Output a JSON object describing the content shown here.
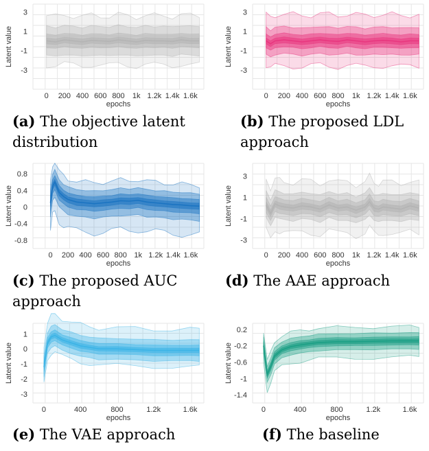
{
  "panels": [
    {
      "id": "a",
      "caption": {
        "tag": "(a)",
        "text": "The objective latent distribution"
      },
      "chart_data": {
        "type": "area",
        "xlabel": "epochs",
        "ylabel": "Latent value",
        "xticks": [
          "0",
          "200",
          "400",
          "600",
          "800",
          "1k",
          "1.2k",
          "1.4k",
          "1.6k"
        ],
        "xtick_values": [
          0,
          200,
          400,
          600,
          800,
          1000,
          1200,
          1400,
          1600
        ],
        "yticks": [
          "3",
          "1",
          "-1",
          "-3"
        ],
        "ytick_values": [
          3,
          1,
          -1,
          -3
        ],
        "xlim": [
          -150,
          1750
        ],
        "ylim": [
          -5,
          3.8
        ],
        "color": "#b3b3b3",
        "x": [
          0,
          100,
          200,
          300,
          400,
          500,
          600,
          700,
          800,
          900,
          1000,
          1100,
          1200,
          1300,
          1400,
          1500,
          1600,
          1700
        ],
        "median": [
          0,
          -0.1,
          0.1,
          0,
          -0.1,
          0.05,
          0,
          -0.05,
          0.1,
          0,
          -0.1,
          0.05,
          0,
          0,
          -0.05,
          0.1,
          0,
          0
        ],
        "bands": [
          [
            0.3,
            0.3
          ],
          [
            0.7,
            0.7
          ],
          [
            1.5,
            1.5
          ],
          [
            2.5,
            2.6
          ]
        ]
      }
    },
    {
      "id": "b",
      "caption": {
        "tag": "(b)",
        "text": "The proposed LDL approach"
      },
      "chart_data": {
        "type": "area",
        "xlabel": "epochs",
        "ylabel": "Latent value",
        "xticks": [
          "0",
          "200",
          "400",
          "600",
          "800",
          "1k",
          "1.2k",
          "1.4k",
          "1.6k"
        ],
        "xtick_values": [
          0,
          200,
          400,
          600,
          800,
          1000,
          1200,
          1400,
          1600
        ],
        "yticks": [
          "3",
          "1",
          "-1",
          "-3"
        ],
        "ytick_values": [
          3,
          1,
          -1,
          -3
        ],
        "xlim": [
          -150,
          1750
        ],
        "ylim": [
          -5,
          3.8
        ],
        "color": "#e8367e",
        "x": [
          0,
          50,
          100,
          200,
          300,
          400,
          500,
          600,
          700,
          800,
          900,
          1000,
          1100,
          1200,
          1300,
          1400,
          1500,
          1600,
          1700
        ],
        "median": [
          0,
          -0.3,
          0,
          0.1,
          0,
          -0.1,
          0,
          0.1,
          0,
          -0.05,
          0.1,
          0,
          -0.1,
          0,
          0.05,
          0,
          -0.1,
          0,
          0
        ],
        "bands": [
          [
            0.3,
            0.3
          ],
          [
            0.7,
            0.7
          ],
          [
            1.4,
            1.4
          ],
          [
            2.6,
            2.7
          ]
        ]
      }
    },
    {
      "id": "c",
      "caption": {
        "tag": "(c)",
        "text": "The proposed AUC approach"
      },
      "chart_data": {
        "type": "area",
        "xlabel": "epochs",
        "ylabel": "Latent value",
        "xticks": [
          "0",
          "200",
          "400",
          "600",
          "800",
          "1k",
          "1.2k",
          "1.4k",
          "1.6k"
        ],
        "xtick_values": [
          0,
          200,
          400,
          600,
          800,
          1000,
          1200,
          1400,
          1600
        ],
        "yticks": [
          "0.8",
          "0.4",
          "0",
          "-0.4",
          "-0.8"
        ],
        "ytick_values": [
          0.8,
          0.4,
          0,
          -0.4,
          -0.8
        ],
        "xlim": [
          -200,
          1750
        ],
        "ylim": [
          -1.0,
          1.05
        ],
        "color": "#1a73c1",
        "x": [
          0,
          25,
          50,
          100,
          150,
          200,
          300,
          400,
          500,
          600,
          700,
          800,
          900,
          1000,
          1100,
          1200,
          1300,
          1400,
          1500,
          1600,
          1700
        ],
        "median": [
          0.1,
          0.5,
          0.6,
          0.35,
          0.25,
          0.18,
          0.12,
          0.1,
          0.08,
          0.1,
          0.12,
          0.15,
          0.14,
          0.16,
          0.12,
          0.1,
          0.08,
          0.06,
          0.05,
          0.03,
          0.02
        ],
        "bands": [
          [
            0.08,
            0.07
          ],
          [
            0.18,
            0.16
          ],
          [
            0.35,
            0.3
          ],
          [
            0.7,
            0.5
          ]
        ]
      }
    },
    {
      "id": "d",
      "caption": {
        "tag": "(d)",
        "text": "The AAE approach"
      },
      "chart_data": {
        "type": "area",
        "xlabel": "epochs",
        "ylabel": "Latent value",
        "xticks": [
          "0",
          "200",
          "400",
          "600",
          "800",
          "1k",
          "1.2k",
          "1.4k",
          "1.6k"
        ],
        "xtick_values": [
          0,
          200,
          400,
          600,
          800,
          1000,
          1200,
          1400,
          1600
        ],
        "yticks": [
          "3",
          "1",
          "-1",
          "-3"
        ],
        "ytick_values": [
          3,
          1,
          -1,
          -3
        ],
        "xlim": [
          -150,
          1750
        ],
        "ylim": [
          -3.8,
          4.2
        ],
        "color": "#b3b3b3",
        "x": [
          0,
          50,
          100,
          150,
          200,
          300,
          400,
          500,
          600,
          700,
          800,
          900,
          1000,
          1100,
          1150,
          1200,
          1250,
          1300,
          1400,
          1500,
          1600,
          1700
        ],
        "median": [
          0.3,
          -0.5,
          0.4,
          0.2,
          0.1,
          0,
          0.2,
          0.1,
          -0.1,
          0.3,
          0,
          0.1,
          -0.2,
          0.1,
          0.6,
          0,
          -0.1,
          0.1,
          0,
          -0.1,
          0.2,
          0
        ],
        "bands": [
          [
            0.3,
            0.3
          ],
          [
            0.7,
            0.7
          ],
          [
            1.2,
            1.3
          ],
          [
            2.4,
            2.4
          ]
        ]
      }
    },
    {
      "id": "e",
      "caption": {
        "tag": "(e)",
        "text": "The VAE approach"
      },
      "chart_data": {
        "type": "area",
        "xlabel": "epochs",
        "ylabel": "Latent value",
        "xticks": [
          "0",
          "400",
          "800",
          "1.2k",
          "1.6k"
        ],
        "xtick_values": [
          0,
          400,
          800,
          1200,
          1600
        ],
        "yticks": [
          "1",
          "0",
          "-1",
          "-2",
          "-3"
        ],
        "ytick_values": [
          1,
          0,
          -1,
          -2,
          -3
        ],
        "xlim": [
          -120,
          1750
        ],
        "ylim": [
          -3.6,
          1.7
        ],
        "color": "#3bb3e6",
        "x": [
          0,
          40,
          80,
          120,
          200,
          300,
          400,
          500,
          600,
          800,
          1000,
          1200,
          1400,
          1600,
          1700
        ],
        "median": [
          -1.2,
          0.4,
          0.8,
          0.9,
          0.6,
          0.4,
          0.2,
          0.1,
          0,
          0,
          -0.05,
          -0.1,
          -0.1,
          -0.1,
          -0.1
        ],
        "bands": [
          [
            0.15,
            0.15
          ],
          [
            0.35,
            0.35
          ],
          [
            0.7,
            0.7
          ],
          [
            1.1,
            1.4
          ]
        ]
      }
    },
    {
      "id": "f",
      "caption": {
        "tag": "(f)",
        "text": "The baseline"
      },
      "chart_data": {
        "type": "area",
        "xlabel": "epochs",
        "ylabel": "Latent value",
        "xticks": [
          "0",
          "400",
          "800",
          "1.2k",
          "1.6k"
        ],
        "xtick_values": [
          0,
          400,
          800,
          1200,
          1600
        ],
        "yticks": [
          "0.2",
          "-0.2",
          "-0.6",
          "-1",
          "-1.4"
        ],
        "ytick_values": [
          0.2,
          -0.2,
          -0.6,
          -1,
          -1.4
        ],
        "xlim": [
          -120,
          1750
        ],
        "ylim": [
          -1.6,
          0.35
        ],
        "color": "#1a9e84",
        "x": [
          0,
          40,
          80,
          120,
          200,
          300,
          400,
          500,
          600,
          800,
          1000,
          1200,
          1400,
          1600,
          1700
        ],
        "median": [
          -0.2,
          -0.9,
          -0.7,
          -0.45,
          -0.3,
          -0.22,
          -0.18,
          -0.15,
          -0.12,
          -0.1,
          -0.1,
          -0.09,
          -0.08,
          -0.08,
          -0.08
        ],
        "bands": [
          [
            0.05,
            0.05
          ],
          [
            0.1,
            0.1
          ],
          [
            0.2,
            0.2
          ],
          [
            0.4,
            0.35
          ]
        ]
      }
    }
  ]
}
